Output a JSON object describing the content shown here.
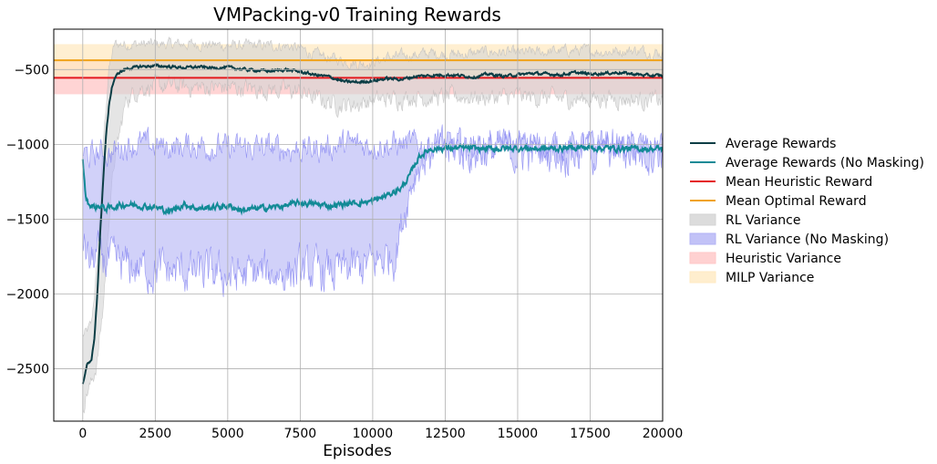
{
  "chart_data": {
    "type": "line",
    "title": "VMPacking-v0 Training Rewards",
    "xlabel": "Episodes",
    "ylabel": "",
    "xlim": [
      -1000,
      20000
    ],
    "ylim": [
      -2850,
      -230
    ],
    "grid": true,
    "legend_position": "right",
    "xticks": [
      0,
      2500,
      5000,
      7500,
      10000,
      12500,
      15000,
      17500,
      20000
    ],
    "yticks": [
      -500,
      -1000,
      -1500,
      -2000,
      -2500
    ],
    "x_tick_labels": [
      "0",
      "2500",
      "5000",
      "7500",
      "10000",
      "12500",
      "15000",
      "17500",
      "20000"
    ],
    "y_tick_labels": [
      "−500",
      "−1000",
      "−1500",
      "−2000",
      "−2500"
    ],
    "series": [
      {
        "name": "Average Rewards",
        "kind": "line",
        "color": "#0b3d45",
        "x": [
          0,
          150,
          300,
          400,
          500,
          600,
          700,
          800,
          900,
          1000,
          1100,
          1250,
          1500,
          2000,
          2500,
          3000,
          3500,
          4000,
          4500,
          5000,
          5500,
          6000,
          6500,
          7000,
          7500,
          8000,
          8500,
          9000,
          9500,
          10000,
          10500,
          11000,
          11500,
          12000,
          12500,
          13000,
          13500,
          14000,
          14500,
          15000,
          15500,
          16000,
          16500,
          17000,
          17500,
          18000,
          18500,
          19000,
          19500,
          20000
        ],
        "y": [
          -2600,
          -2470,
          -2450,
          -2300,
          -2000,
          -1600,
          -1250,
          -950,
          -750,
          -620,
          -560,
          -520,
          -495,
          -480,
          -475,
          -480,
          -488,
          -482,
          -490,
          -485,
          -498,
          -505,
          -510,
          -500,
          -515,
          -535,
          -548,
          -580,
          -585,
          -575,
          -560,
          -565,
          -545,
          -540,
          -535,
          -540,
          -550,
          -530,
          -545,
          -535,
          -525,
          -530,
          -535,
          -520,
          -530,
          -525,
          -520,
          -530,
          -540,
          -540
        ]
      },
      {
        "name": "Average Rewards (No Masking)",
        "kind": "line",
        "color": "#128a96",
        "x": [
          0,
          100,
          200,
          400,
          600,
          800,
          1000,
          1500,
          2000,
          2500,
          3000,
          3500,
          4000,
          4500,
          5000,
          5500,
          6000,
          6500,
          7000,
          7500,
          8000,
          8500,
          9000,
          9500,
          10000,
          10500,
          11000,
          11300,
          11600,
          12000,
          12500,
          13000,
          14000,
          15000,
          16000,
          17000,
          18000,
          19000,
          20000
        ],
        "y": [
          -1100,
          -1350,
          -1400,
          -1420,
          -1410,
          -1430,
          -1420,
          -1400,
          -1410,
          -1420,
          -1450,
          -1400,
          -1430,
          -1420,
          -1410,
          -1440,
          -1430,
          -1420,
          -1410,
          -1390,
          -1400,
          -1410,
          -1400,
          -1390,
          -1380,
          -1340,
          -1290,
          -1200,
          -1080,
          -1030,
          -1025,
          -1025,
          -1030,
          -1025,
          -1030,
          -1020,
          -1025,
          -1030,
          -1030
        ]
      },
      {
        "name": "Mean Heuristic Reward",
        "kind": "hline",
        "color": "#e41a1c",
        "y": -555
      },
      {
        "name": "Mean Optimal Reward",
        "kind": "hline",
        "color": "#f0a21a",
        "y": -438
      },
      {
        "name": "RL Variance",
        "kind": "band",
        "color": "#d3d3d3",
        "x": [
          0,
          150,
          300,
          500,
          700,
          900,
          1100,
          1500,
          2000,
          3000,
          4000,
          5000,
          6000,
          7000,
          7500,
          8000,
          8500,
          9000,
          9500,
          10000,
          10500,
          11000,
          11500,
          12000,
          13000,
          14000,
          15000,
          16000,
          17000,
          18000,
          19000,
          20000
        ],
        "upper": [
          -2280,
          -2250,
          -2200,
          -1800,
          -1000,
          -500,
          -330,
          -330,
          -330,
          -330,
          -330,
          -340,
          -340,
          -340,
          -360,
          -400,
          -420,
          -440,
          -460,
          -450,
          -420,
          -410,
          -400,
          -390,
          -400,
          -380,
          -390,
          -380,
          -370,
          -380,
          -370,
          -390
        ],
        "lower": [
          -2750,
          -2650,
          -2600,
          -2450,
          -2100,
          -1500,
          -1100,
          -700,
          -620,
          -610,
          -620,
          -620,
          -630,
          -640,
          -650,
          -690,
          -720,
          -740,
          -730,
          -710,
          -700,
          -690,
          -680,
          -690,
          -680,
          -690,
          -680,
          -690,
          -700,
          -690,
          -700,
          -710
        ]
      },
      {
        "name": "RL Variance (No Masking)",
        "kind": "band",
        "color": "#b3b3f5",
        "x": [
          0,
          200,
          500,
          1000,
          1500,
          2000,
          3000,
          4000,
          5000,
          6000,
          7000,
          8000,
          9000,
          10000,
          10800,
          11200,
          11500,
          12000,
          13000,
          14000,
          15000,
          16000,
          17000,
          18000,
          19000,
          20000
        ],
        "upper": [
          -1050,
          -1080,
          -1060,
          -1060,
          -1000,
          -1000,
          -1020,
          -1000,
          -1030,
          -1020,
          -1030,
          -1030,
          -1000,
          -1000,
          -1000,
          -1000,
          -1000,
          -1005,
          -1005,
          -1005,
          -1005,
          -1005,
          -1005,
          -1005,
          -1005,
          -1005
        ],
        "lower": [
          -1600,
          -1800,
          -1750,
          -1800,
          -1820,
          -1830,
          -1850,
          -1860,
          -1880,
          -1870,
          -1850,
          -1860,
          -1850,
          -1800,
          -1720,
          -1350,
          -1150,
          -1050,
          -1045,
          -1045,
          -1045,
          -1045,
          -1045,
          -1045,
          -1045,
          -1045
        ]
      },
      {
        "name": "Heuristic Variance",
        "kind": "hband",
        "color": "#ffc6c6",
        "upper": -440,
        "lower": -665
      },
      {
        "name": "MILP Variance",
        "kind": "hband",
        "color": "#ffeac2",
        "upper": -330,
        "lower": -545
      }
    ]
  }
}
